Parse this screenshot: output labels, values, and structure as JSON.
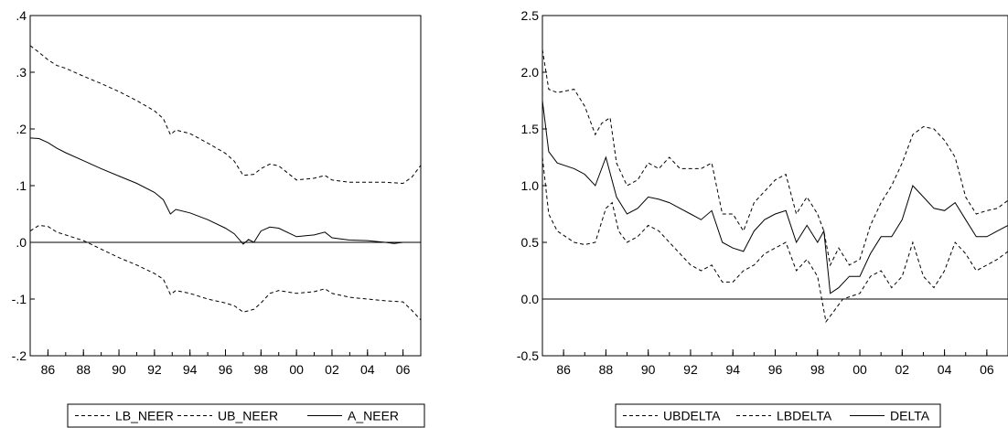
{
  "chart_data": [
    {
      "type": "line",
      "x_range": [
        1985.0,
        2007.0
      ],
      "ylim": [
        -0.2,
        0.4
      ],
      "y_ticks": [
        0.4,
        0.3,
        0.2,
        0.1,
        0.0,
        -0.1,
        -0.2
      ],
      "y_tick_labels": [
        ".4",
        ".3",
        ".2",
        ".1",
        ".0",
        "-.1",
        "-.2"
      ],
      "x_ticks": [
        1986,
        1988,
        1990,
        1992,
        1994,
        1996,
        1998,
        2000,
        2002,
        2004,
        2006
      ],
      "x_tick_labels": [
        "86",
        "88",
        "90",
        "92",
        "94",
        "96",
        "98",
        "00",
        "02",
        "04",
        "06"
      ],
      "zero_line": true,
      "legend_position": "bottom-center",
      "series": [
        {
          "name": "LB_NEER",
          "style": "dashed",
          "points": [
            [
              1985.0,
              0.02
            ],
            [
              1985.5,
              0.03
            ],
            [
              1986.0,
              0.028
            ],
            [
              1986.5,
              0.018
            ],
            [
              1987.0,
              0.013
            ],
            [
              1988.0,
              0.003
            ],
            [
              1989.0,
              -0.012
            ],
            [
              1990.0,
              -0.027
            ],
            [
              1991.0,
              -0.04
            ],
            [
              1992.0,
              -0.055
            ],
            [
              1992.5,
              -0.065
            ],
            [
              1992.9,
              -0.092
            ],
            [
              1993.2,
              -0.085
            ],
            [
              1994.0,
              -0.09
            ],
            [
              1995.0,
              -0.1
            ],
            [
              1996.0,
              -0.107
            ],
            [
              1996.5,
              -0.112
            ],
            [
              1997.0,
              -0.123
            ],
            [
              1997.6,
              -0.118
            ],
            [
              1998.0,
              -0.107
            ],
            [
              1998.5,
              -0.09
            ],
            [
              1999.0,
              -0.085
            ],
            [
              2000.0,
              -0.09
            ],
            [
              2001.0,
              -0.087
            ],
            [
              2001.6,
              -0.082
            ],
            [
              2002.0,
              -0.09
            ],
            [
              2003.0,
              -0.097
            ],
            [
              2004.0,
              -0.1
            ],
            [
              2005.0,
              -0.103
            ],
            [
              2006.0,
              -0.105
            ],
            [
              2006.5,
              -0.12
            ],
            [
              2007.0,
              -0.137
            ]
          ]
        },
        {
          "name": "UB_NEER",
          "style": "dashed",
          "points": [
            [
              1985.0,
              0.347
            ],
            [
              1985.5,
              0.335
            ],
            [
              1986.0,
              0.322
            ],
            [
              1986.5,
              0.312
            ],
            [
              1987.0,
              0.307
            ],
            [
              1988.0,
              0.293
            ],
            [
              1989.0,
              0.28
            ],
            [
              1990.0,
              0.266
            ],
            [
              1991.0,
              0.25
            ],
            [
              1992.0,
              0.232
            ],
            [
              1992.5,
              0.218
            ],
            [
              1992.9,
              0.19
            ],
            [
              1993.2,
              0.198
            ],
            [
              1994.0,
              0.192
            ],
            [
              1995.0,
              0.175
            ],
            [
              1996.0,
              0.157
            ],
            [
              1996.5,
              0.143
            ],
            [
              1997.0,
              0.118
            ],
            [
              1997.6,
              0.12
            ],
            [
              1998.0,
              0.13
            ],
            [
              1998.5,
              0.138
            ],
            [
              1999.0,
              0.135
            ],
            [
              2000.0,
              0.11
            ],
            [
              2001.0,
              0.113
            ],
            [
              2001.6,
              0.118
            ],
            [
              2002.0,
              0.11
            ],
            [
              2003.0,
              0.106
            ],
            [
              2004.0,
              0.106
            ],
            [
              2005.0,
              0.106
            ],
            [
              2006.0,
              0.104
            ],
            [
              2006.5,
              0.115
            ],
            [
              2007.0,
              0.136
            ]
          ]
        },
        {
          "name": "A_NEER",
          "style": "solid",
          "points": [
            [
              1985.0,
              0.184
            ],
            [
              1985.5,
              0.183
            ],
            [
              1986.0,
              0.176
            ],
            [
              1986.5,
              0.166
            ],
            [
              1987.0,
              0.158
            ],
            [
              1988.0,
              0.144
            ],
            [
              1989.0,
              0.13
            ],
            [
              1990.0,
              0.117
            ],
            [
              1991.0,
              0.104
            ],
            [
              1992.0,
              0.088
            ],
            [
              1992.5,
              0.075
            ],
            [
              1992.9,
              0.05
            ],
            [
              1993.2,
              0.058
            ],
            [
              1994.0,
              0.052
            ],
            [
              1995.0,
              0.04
            ],
            [
              1996.0,
              0.025
            ],
            [
              1996.5,
              0.015
            ],
            [
              1997.0,
              -0.003
            ],
            [
              1997.3,
              0.005
            ],
            [
              1997.6,
              0.0
            ],
            [
              1998.0,
              0.02
            ],
            [
              1998.5,
              0.027
            ],
            [
              1999.0,
              0.025
            ],
            [
              2000.0,
              0.01
            ],
            [
              2001.0,
              0.013
            ],
            [
              2001.6,
              0.018
            ],
            [
              2002.0,
              0.008
            ],
            [
              2003.0,
              0.004
            ],
            [
              2004.0,
              0.003
            ],
            [
              2005.0,
              0.0
            ],
            [
              2005.5,
              -0.002
            ],
            [
              2006.0,
              0.0
            ],
            [
              2006.5,
              0.0
            ],
            [
              2007.0,
              0.0
            ]
          ]
        }
      ]
    },
    {
      "type": "line",
      "x_range": [
        1985.0,
        2007.0
      ],
      "ylim": [
        -0.5,
        2.5
      ],
      "y_ticks": [
        2.5,
        2.0,
        1.5,
        1.0,
        0.5,
        0.0,
        -0.5
      ],
      "y_tick_labels": [
        "2.5",
        "2.0",
        "1.5",
        "1.0",
        "0.5",
        "0.0",
        "-0.5"
      ],
      "x_ticks": [
        1986,
        1988,
        1990,
        1992,
        1994,
        1996,
        1998,
        2000,
        2002,
        2004,
        2006
      ],
      "x_tick_labels": [
        "86",
        "88",
        "90",
        "92",
        "94",
        "96",
        "98",
        "00",
        "02",
        "04",
        "06"
      ],
      "zero_line": true,
      "legend_position": "bottom-center",
      "series": [
        {
          "name": "UBDELTA",
          "style": "dashed",
          "points": [
            [
              1985.0,
              2.2
            ],
            [
              1985.3,
              1.85
            ],
            [
              1985.7,
              1.82
            ],
            [
              1986.5,
              1.85
            ],
            [
              1987.0,
              1.7
            ],
            [
              1987.5,
              1.45
            ],
            [
              1987.8,
              1.55
            ],
            [
              1988.2,
              1.6
            ],
            [
              1988.5,
              1.2
            ],
            [
              1989.0,
              1.0
            ],
            [
              1989.5,
              1.05
            ],
            [
              1990.0,
              1.2
            ],
            [
              1990.5,
              1.15
            ],
            [
              1991.0,
              1.25
            ],
            [
              1991.5,
              1.15
            ],
            [
              1992.0,
              1.15
            ],
            [
              1992.5,
              1.15
            ],
            [
              1993.0,
              1.2
            ],
            [
              1993.5,
              0.75
            ],
            [
              1994.0,
              0.75
            ],
            [
              1994.5,
              0.6
            ],
            [
              1995.0,
              0.85
            ],
            [
              1995.5,
              0.95
            ],
            [
              1996.0,
              1.05
            ],
            [
              1996.5,
              1.1
            ],
            [
              1997.0,
              0.75
            ],
            [
              1997.5,
              0.9
            ],
            [
              1998.0,
              0.75
            ],
            [
              1998.3,
              0.6
            ],
            [
              1998.6,
              0.3
            ],
            [
              1999.0,
              0.45
            ],
            [
              1999.5,
              0.3
            ],
            [
              2000.0,
              0.35
            ],
            [
              2000.5,
              0.65
            ],
            [
              2001.0,
              0.85
            ],
            [
              2001.5,
              1.0
            ],
            [
              2002.0,
              1.2
            ],
            [
              2002.5,
              1.45
            ],
            [
              2003.0,
              1.52
            ],
            [
              2003.5,
              1.5
            ],
            [
              2004.0,
              1.4
            ],
            [
              2004.5,
              1.25
            ],
            [
              2005.0,
              0.9
            ],
            [
              2005.5,
              0.75
            ],
            [
              2006.0,
              0.78
            ],
            [
              2006.5,
              0.8
            ],
            [
              2007.0,
              0.87
            ]
          ]
        },
        {
          "name": "LBDELTA",
          "style": "dashed",
          "points": [
            [
              1985.0,
              1.25
            ],
            [
              1985.3,
              0.75
            ],
            [
              1985.7,
              0.6
            ],
            [
              1986.5,
              0.5
            ],
            [
              1987.0,
              0.48
            ],
            [
              1987.5,
              0.5
            ],
            [
              1988.0,
              0.8
            ],
            [
              1988.3,
              0.85
            ],
            [
              1988.6,
              0.6
            ],
            [
              1989.0,
              0.5
            ],
            [
              1989.5,
              0.55
            ],
            [
              1990.0,
              0.65
            ],
            [
              1990.5,
              0.6
            ],
            [
              1991.0,
              0.5
            ],
            [
              1991.5,
              0.4
            ],
            [
              1992.0,
              0.3
            ],
            [
              1992.5,
              0.25
            ],
            [
              1993.0,
              0.3
            ],
            [
              1993.5,
              0.15
            ],
            [
              1994.0,
              0.15
            ],
            [
              1994.5,
              0.25
            ],
            [
              1995.0,
              0.3
            ],
            [
              1995.5,
              0.4
            ],
            [
              1996.0,
              0.45
            ],
            [
              1996.5,
              0.5
            ],
            [
              1997.0,
              0.25
            ],
            [
              1997.5,
              0.35
            ],
            [
              1998.0,
              0.2
            ],
            [
              1998.4,
              -0.2
            ],
            [
              1998.8,
              -0.1
            ],
            [
              1999.2,
              0.0
            ],
            [
              2000.0,
              0.05
            ],
            [
              2000.5,
              0.2
            ],
            [
              2001.0,
              0.25
            ],
            [
              2001.5,
              0.1
            ],
            [
              2002.0,
              0.2
            ],
            [
              2002.5,
              0.5
            ],
            [
              2003.0,
              0.2
            ],
            [
              2003.5,
              0.1
            ],
            [
              2004.0,
              0.25
            ],
            [
              2004.5,
              0.5
            ],
            [
              2005.0,
              0.4
            ],
            [
              2005.5,
              0.25
            ],
            [
              2006.0,
              0.3
            ],
            [
              2006.5,
              0.35
            ],
            [
              2007.0,
              0.42
            ]
          ]
        },
        {
          "name": "DELTA",
          "style": "solid",
          "points": [
            [
              1985.0,
              1.75
            ],
            [
              1985.3,
              1.3
            ],
            [
              1985.7,
              1.2
            ],
            [
              1986.5,
              1.15
            ],
            [
              1987.0,
              1.1
            ],
            [
              1987.5,
              1.0
            ],
            [
              1988.0,
              1.25
            ],
            [
              1988.5,
              0.9
            ],
            [
              1989.0,
              0.75
            ],
            [
              1989.5,
              0.8
            ],
            [
              1990.0,
              0.9
            ],
            [
              1990.5,
              0.88
            ],
            [
              1991.0,
              0.85
            ],
            [
              1991.5,
              0.8
            ],
            [
              1992.0,
              0.75
            ],
            [
              1992.5,
              0.7
            ],
            [
              1993.0,
              0.78
            ],
            [
              1993.5,
              0.5
            ],
            [
              1994.0,
              0.45
            ],
            [
              1994.5,
              0.42
            ],
            [
              1995.0,
              0.6
            ],
            [
              1995.5,
              0.7
            ],
            [
              1996.0,
              0.75
            ],
            [
              1996.5,
              0.78
            ],
            [
              1997.0,
              0.5
            ],
            [
              1997.5,
              0.65
            ],
            [
              1998.0,
              0.5
            ],
            [
              1998.3,
              0.6
            ],
            [
              1998.6,
              0.05
            ],
            [
              1999.0,
              0.1
            ],
            [
              1999.5,
              0.2
            ],
            [
              2000.0,
              0.2
            ],
            [
              2000.5,
              0.4
            ],
            [
              2001.0,
              0.55
            ],
            [
              2001.5,
              0.55
            ],
            [
              2002.0,
              0.7
            ],
            [
              2002.5,
              1.0
            ],
            [
              2003.0,
              0.9
            ],
            [
              2003.5,
              0.8
            ],
            [
              2004.0,
              0.78
            ],
            [
              2004.5,
              0.85
            ],
            [
              2005.0,
              0.7
            ],
            [
              2005.5,
              0.55
            ],
            [
              2006.0,
              0.55
            ],
            [
              2006.5,
              0.6
            ],
            [
              2007.0,
              0.65
            ]
          ]
        }
      ]
    }
  ]
}
